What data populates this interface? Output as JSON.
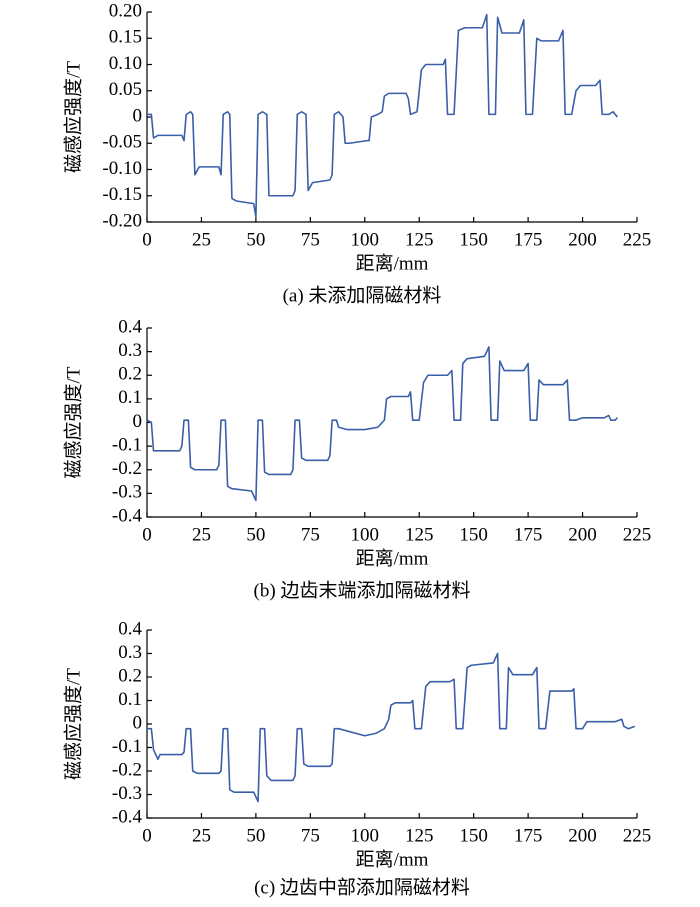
{
  "chart_data": [
    {
      "type": "line",
      "caption": "(a)  未添加隔磁材料",
      "xlabel": "距离/mm",
      "ylabel": "磁感应强度/T",
      "xlim": [
        0,
        225
      ],
      "xticks": [
        0,
        25,
        50,
        75,
        100,
        125,
        150,
        175,
        200,
        225
      ],
      "ylim": [
        -0.2,
        0.2
      ],
      "yticks": [
        {
          "value": -0.2,
          "label": "-0.20"
        },
        -0.15,
        {
          "value": -0.1,
          "label": "-0.10"
        },
        -0.05,
        0,
        0.05,
        {
          "value": 0.1,
          "label": "0.10"
        },
        0.15,
        {
          "value": 0.2,
          "label": "0.20"
        }
      ],
      "x": [
        0,
        2,
        3,
        5,
        16,
        17,
        18,
        20,
        21,
        22,
        24,
        33,
        34,
        35,
        37,
        38,
        39,
        41,
        49,
        50,
        51,
        53,
        55,
        56,
        58,
        67,
        68,
        69,
        71,
        73,
        74,
        76,
        84,
        85,
        86,
        88,
        90,
        91,
        93,
        101,
        102,
        103,
        106,
        108,
        109,
        111,
        119,
        120,
        121,
        124,
        126,
        128,
        136,
        137,
        138,
        141,
        143,
        146,
        154,
        156,
        157,
        160,
        161,
        163,
        171,
        173,
        174,
        177,
        179,
        181,
        189,
        191,
        192,
        195,
        197,
        199,
        206,
        208,
        209,
        212,
        214,
        216
      ],
      "series": [
        {
          "color": "#3a5fa8",
          "values": [
            0.005,
            0.005,
            -0.04,
            -0.035,
            -0.035,
            -0.045,
            0.005,
            0.01,
            0.005,
            -0.11,
            -0.095,
            -0.095,
            -0.11,
            0.005,
            0.01,
            0.005,
            -0.155,
            -0.16,
            -0.165,
            -0.19,
            0.005,
            0.01,
            0.005,
            -0.15,
            -0.15,
            -0.15,
            -0.14,
            0.005,
            0.01,
            0.005,
            -0.14,
            -0.125,
            -0.12,
            -0.11,
            0.005,
            0.01,
            0,
            -0.05,
            -0.05,
            -0.045,
            -0.045,
            0,
            0.005,
            0.01,
            0.04,
            0.045,
            0.045,
            0.035,
            0.005,
            0.01,
            0.09,
            0.1,
            0.1,
            0.11,
            0.005,
            0.005,
            0.165,
            0.17,
            0.17,
            0.195,
            0.005,
            0.005,
            0.19,
            0.16,
            0.16,
            0.185,
            0.005,
            0.005,
            0.15,
            0.145,
            0.145,
            0.165,
            0.005,
            0.005,
            0.05,
            0.06,
            0.06,
            0.07,
            0.005,
            0.005,
            0.01,
            0
          ]
        }
      ]
    },
    {
      "type": "line",
      "caption": "(b)  边齿末端添加隔磁材料",
      "xlabel": "距离/mm",
      "ylabel": "磁感应强度/T",
      "xlim": [
        0,
        225
      ],
      "xticks": [
        0,
        25,
        50,
        75,
        100,
        125,
        150,
        175,
        200,
        225
      ],
      "ylim": [
        -0.4,
        0.4
      ],
      "yticks": [
        -0.4,
        -0.3,
        -0.2,
        -0.1,
        0,
        0.1,
        0.2,
        0.3,
        0.4
      ],
      "x": [
        0,
        2,
        3,
        5,
        15,
        16,
        17,
        19,
        20,
        22,
        32,
        33,
        34,
        36,
        37,
        39,
        48,
        50,
        51,
        53,
        54,
        56,
        66,
        67,
        68,
        70,
        71,
        73,
        83,
        84,
        85,
        87,
        88,
        92,
        100,
        106,
        109,
        110,
        112,
        120,
        121,
        122,
        125,
        127,
        129,
        138,
        140,
        141,
        144,
        145,
        147,
        155,
        157,
        158,
        161,
        162,
        164,
        173,
        175,
        176,
        179,
        180,
        182,
        191,
        193,
        194,
        197,
        200,
        204,
        210,
        212,
        213,
        215,
        216
      ],
      "series": [
        {
          "color": "#3a5fa8",
          "values": [
            0.01,
            0,
            -0.12,
            -0.12,
            -0.12,
            -0.1,
            0.01,
            0.01,
            -0.19,
            -0.2,
            -0.2,
            -0.18,
            0.01,
            0.01,
            -0.27,
            -0.28,
            -0.29,
            -0.33,
            0.01,
            0.01,
            -0.21,
            -0.22,
            -0.22,
            -0.2,
            0.01,
            0.01,
            -0.15,
            -0.16,
            -0.16,
            -0.14,
            0.01,
            0.01,
            -0.02,
            -0.03,
            -0.03,
            -0.02,
            0.01,
            0.1,
            0.11,
            0.11,
            0.13,
            0.01,
            0.01,
            0.17,
            0.2,
            0.2,
            0.22,
            0.01,
            0.01,
            0.25,
            0.27,
            0.28,
            0.32,
            0.01,
            0.01,
            0.26,
            0.22,
            0.22,
            0.25,
            0.01,
            0.01,
            0.18,
            0.16,
            0.16,
            0.18,
            0.01,
            0.01,
            0.02,
            0.02,
            0.02,
            0.03,
            0.01,
            0.01,
            0.02
          ]
        }
      ]
    },
    {
      "type": "line",
      "caption": "(c)  边齿中部添加隔磁材料",
      "xlabel": "距离/mm",
      "ylabel": "磁感应强度/T",
      "xlim": [
        0,
        225
      ],
      "xticks": [
        0,
        25,
        50,
        75,
        100,
        125,
        150,
        175,
        200,
        225
      ],
      "ylim": [
        -0.4,
        0.4
      ],
      "yticks": [
        -0.4,
        -0.3,
        -0.2,
        -0.1,
        0,
        0.1,
        0.2,
        0.3,
        0.4
      ],
      "x": [
        0,
        2,
        3,
        5,
        6,
        16,
        17,
        18,
        20,
        21,
        23,
        33,
        34,
        35,
        37,
        38,
        40,
        49,
        51,
        52,
        54,
        55,
        57,
        67,
        68,
        69,
        71,
        72,
        74,
        84,
        85,
        86,
        88,
        92,
        100,
        105,
        109,
        111,
        112,
        114,
        121,
        122,
        123,
        126,
        128,
        130,
        139,
        141,
        142,
        145,
        147,
        149,
        159,
        161,
        162,
        165,
        166,
        168,
        177,
        179,
        180,
        183,
        185,
        187,
        195,
        196,
        197,
        200,
        202,
        206,
        215,
        218,
        219,
        221,
        224
      ],
      "series": [
        {
          "color": "#3a5fa8",
          "values": [
            -0.02,
            -0.02,
            -0.11,
            -0.15,
            -0.13,
            -0.13,
            -0.12,
            -0.02,
            -0.02,
            -0.2,
            -0.21,
            -0.21,
            -0.2,
            -0.02,
            -0.02,
            -0.28,
            -0.29,
            -0.29,
            -0.33,
            -0.02,
            -0.02,
            -0.22,
            -0.24,
            -0.24,
            -0.22,
            -0.02,
            -0.02,
            -0.17,
            -0.18,
            -0.18,
            -0.17,
            -0.02,
            -0.02,
            -0.03,
            -0.05,
            -0.04,
            -0.02,
            0.02,
            0.08,
            0.09,
            0.09,
            0.1,
            -0.02,
            -0.02,
            0.16,
            0.18,
            0.18,
            0.19,
            -0.02,
            -0.02,
            0.24,
            0.25,
            0.26,
            0.3,
            -0.02,
            -0.02,
            0.24,
            0.21,
            0.21,
            0.24,
            -0.02,
            -0.02,
            0.14,
            0.14,
            0.14,
            0.15,
            -0.02,
            -0.02,
            0.01,
            0.01,
            0.01,
            0.02,
            -0.01,
            -0.02,
            -0.01
          ]
        }
      ]
    }
  ]
}
